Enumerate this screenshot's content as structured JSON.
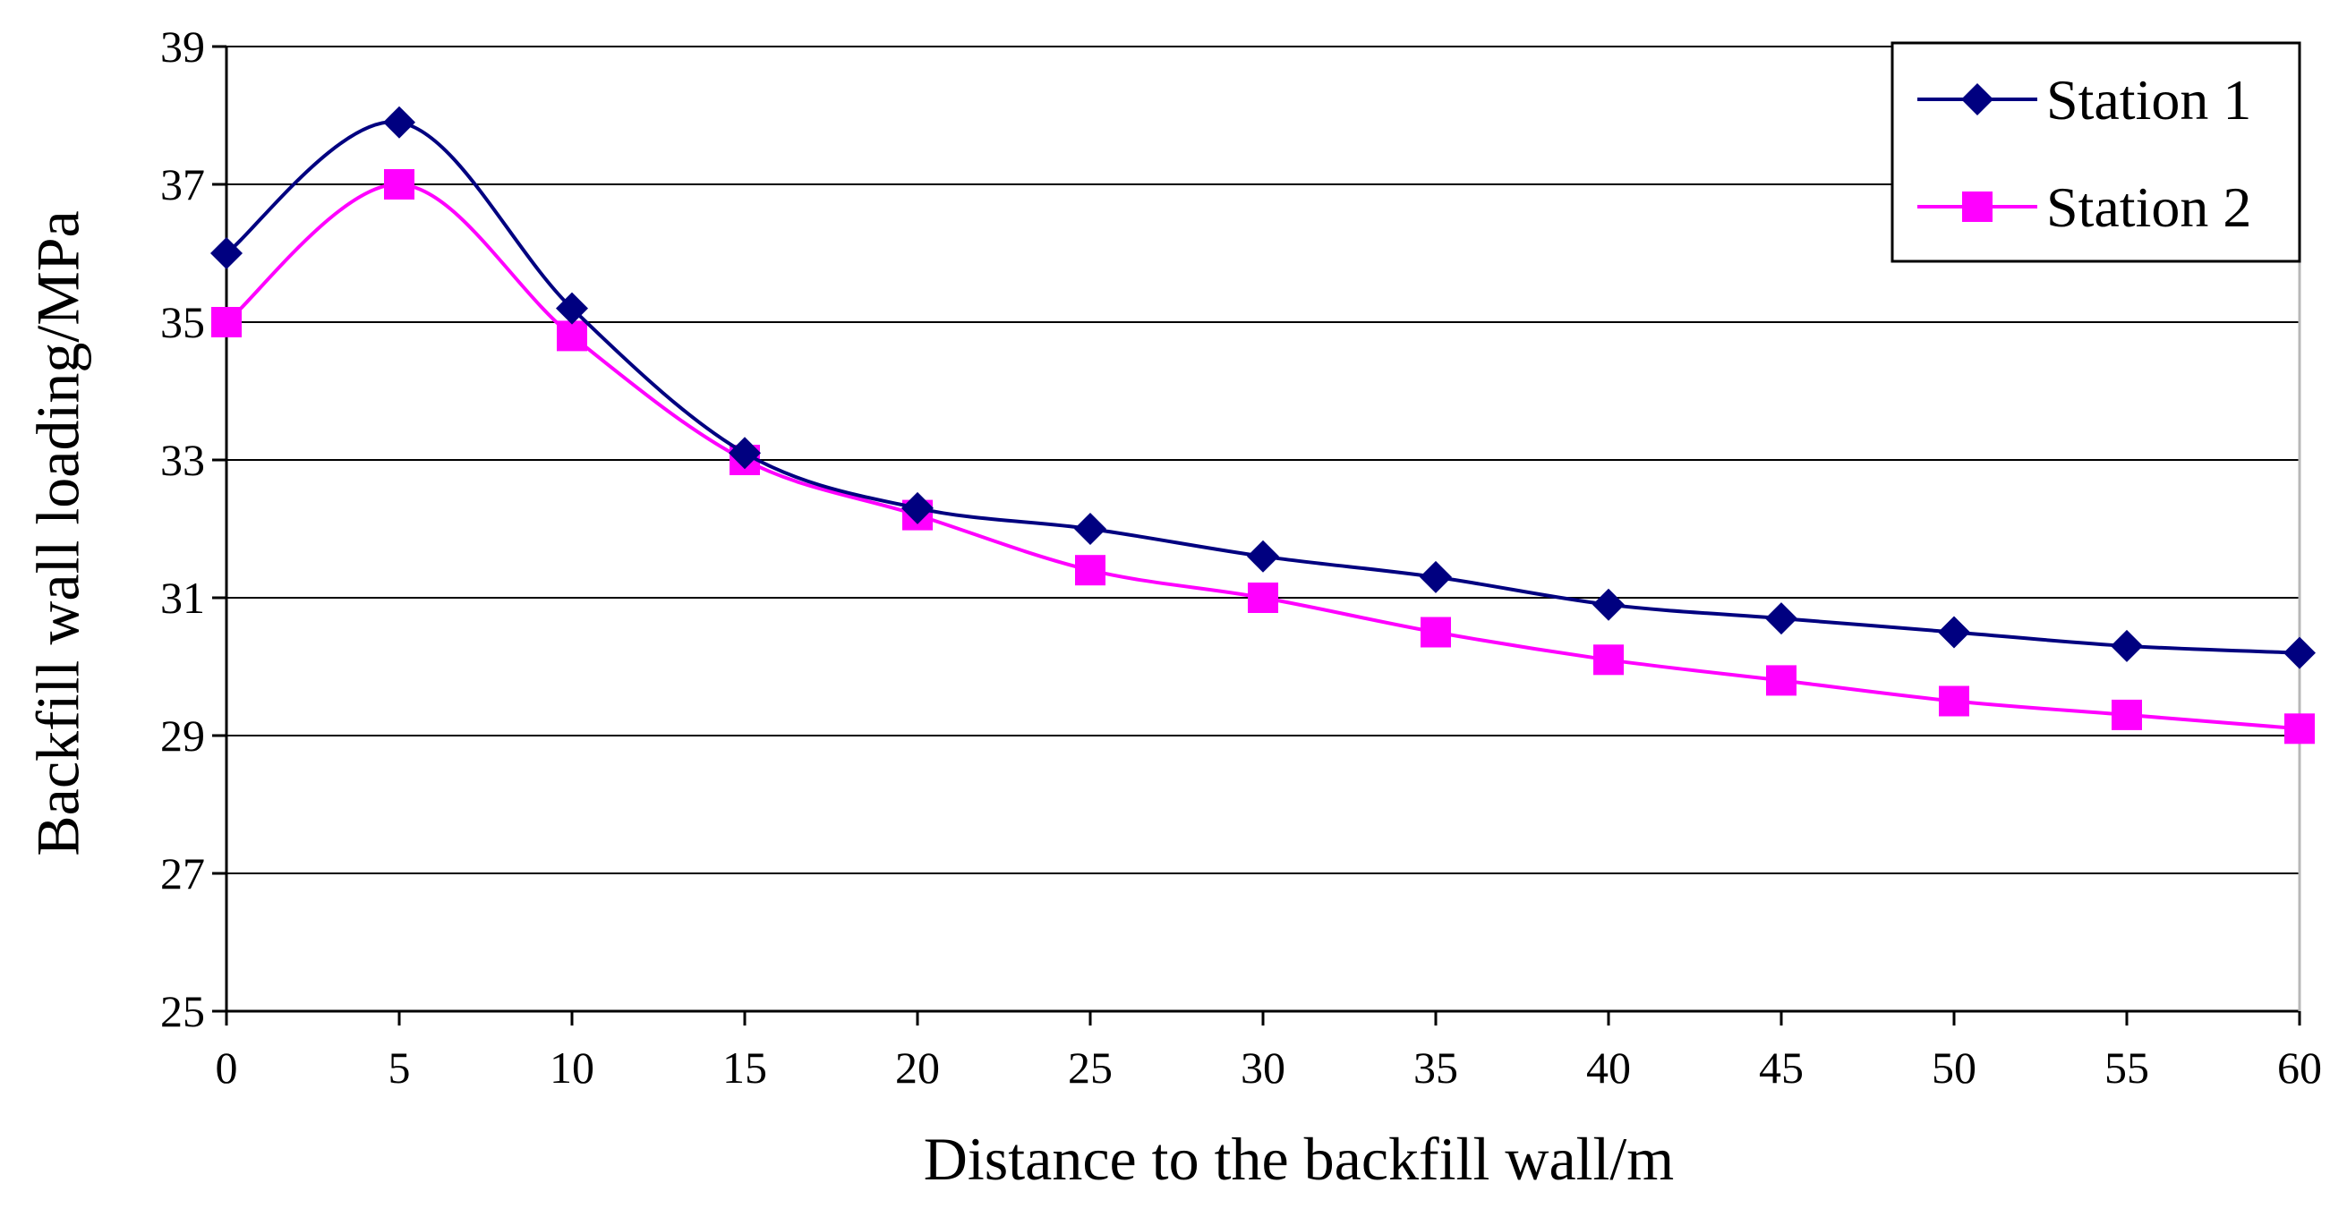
{
  "chart_data": {
    "type": "line",
    "title": "",
    "xlabel": "Distance to the backfill wall/m",
    "ylabel": "Backfill wall loading/MPa",
    "x": [
      0,
      5,
      10,
      15,
      20,
      25,
      30,
      35,
      40,
      45,
      50,
      55,
      60
    ],
    "xlim": [
      0,
      60
    ],
    "ylim": [
      25,
      39
    ],
    "x_ticks": [
      0,
      5,
      10,
      15,
      20,
      25,
      30,
      35,
      40,
      45,
      50,
      55,
      60
    ],
    "y_ticks": [
      25,
      27,
      29,
      31,
      33,
      35,
      37,
      39
    ],
    "grid": "horizontal",
    "legend_position": "top-right",
    "series": [
      {
        "name": "Station 1",
        "color": "#000080",
        "marker": "diamond",
        "values": [
          36.0,
          37.9,
          35.2,
          33.1,
          32.3,
          32.0,
          31.6,
          31.3,
          30.9,
          30.7,
          30.5,
          30.3,
          30.2
        ]
      },
      {
        "name": "Station 2",
        "color": "#FF00FF",
        "marker": "square",
        "values": [
          35.0,
          37.0,
          34.8,
          33.0,
          32.2,
          31.4,
          31.0,
          30.5,
          30.1,
          29.8,
          29.5,
          29.3,
          29.1
        ]
      }
    ]
  }
}
